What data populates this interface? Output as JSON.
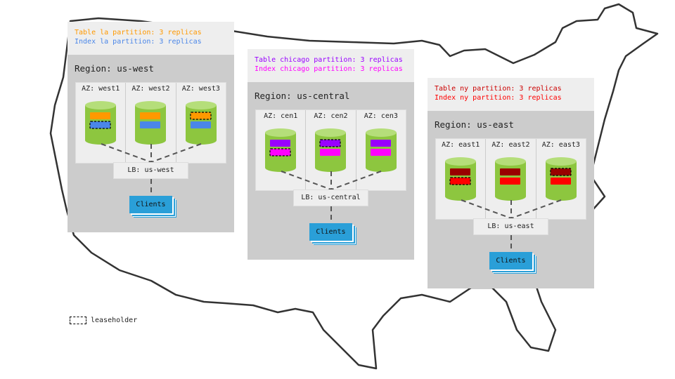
{
  "regions": [
    {
      "name": "us-west",
      "label": "Region: us-west",
      "table_line": "Table la partition: 3 replicas",
      "index_line": "Index la partition: 3 replicas",
      "table_color": "#ff9900",
      "index_color": "#4a86e8",
      "table_text_color": "#ff9900",
      "index_text_color": "#4a86e8",
      "azs": [
        {
          "label": "AZ: west1",
          "leaseholder": "index"
        },
        {
          "label": "AZ: west2",
          "leaseholder": ""
        },
        {
          "label": "AZ: west3",
          "leaseholder": "table"
        }
      ],
      "lb": "LB: us-west",
      "clients": "Clients"
    },
    {
      "name": "us-central",
      "label": "Region: us-central",
      "table_line": "Table chicago partition: 3 replicas",
      "index_line": "Index chicago partition: 3 replicas",
      "table_color": "#9900ff",
      "index_color": "#ff00ff",
      "table_text_color": "#9900ff",
      "index_text_color": "#ff00ff",
      "azs": [
        {
          "label": "AZ: cen1",
          "leaseholder": "index"
        },
        {
          "label": "AZ: cen2",
          "leaseholder": "table"
        },
        {
          "label": "AZ: cen3",
          "leaseholder": ""
        }
      ],
      "lb": "LB: us-central",
      "clients": "Clients"
    },
    {
      "name": "us-east",
      "label": "Region: us-east",
      "table_line": "Table ny partition: 3 replicas",
      "index_line": "Index ny partition: 3 replicas",
      "table_color": "#990000",
      "index_color": "#ff0000",
      "table_text_color": "#cc0000",
      "index_text_color": "#ff0000",
      "azs": [
        {
          "label": "AZ: east1",
          "leaseholder": "index"
        },
        {
          "label": "AZ: east2",
          "leaseholder": ""
        },
        {
          "label": "AZ: east3",
          "leaseholder": "table"
        }
      ],
      "lb": "LB: us-east",
      "clients": "Clients"
    }
  ],
  "legend": {
    "label": "leaseholder"
  },
  "colors": {
    "cylinder": "#8dc63f",
    "cylinder_top": "#b5de7a",
    "clients": "#2a9fd8"
  }
}
